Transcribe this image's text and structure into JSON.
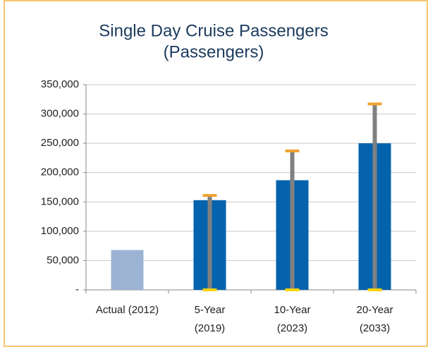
{
  "chart_data": {
    "type": "bar",
    "title": [
      "Single Day Cruise Passengers",
      "(Passengers)"
    ],
    "categories": [
      [
        "Actual (2012)"
      ],
      [
        "5-Year",
        "(2019)"
      ],
      [
        "10-Year",
        "(2023)"
      ],
      [
        "20-Year",
        "(2033)"
      ]
    ],
    "values": [
      68000,
      153000,
      187000,
      250000
    ],
    "colors": [
      "#9cb3d4",
      "#0563ad",
      "#0563ad",
      "#0563ad"
    ],
    "range_low": [
      null,
      0,
      0,
      0
    ],
    "range_high": [
      null,
      161000,
      237000,
      317000
    ],
    "range_color": "#808080",
    "high_color": "#f0a330",
    "low_color": "#f5d40a",
    "ylim": [
      0,
      350000
    ],
    "yticks": [
      {
        "value": 0,
        "label": "-"
      },
      {
        "value": 50000,
        "label": "50,000"
      },
      {
        "value": 100000,
        "label": "100,000"
      },
      {
        "value": 150000,
        "label": "150,000"
      },
      {
        "value": 200000,
        "label": "200,000"
      },
      {
        "value": 250000,
        "label": "250,000"
      },
      {
        "value": 300000,
        "label": "300,000"
      },
      {
        "value": 350000,
        "label": "350,000"
      }
    ],
    "grid": true
  }
}
